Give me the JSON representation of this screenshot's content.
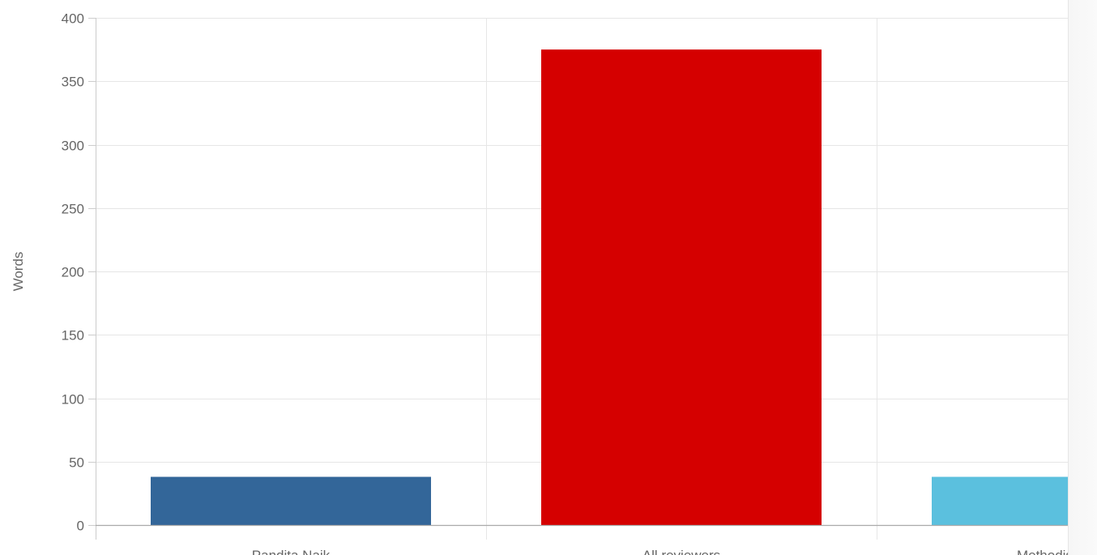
{
  "chart_data": {
    "type": "bar",
    "ylabel": "Words",
    "xlabel": "",
    "ylim": [
      0,
      400
    ],
    "yticks": [
      0,
      50,
      100,
      150,
      200,
      250,
      300,
      350,
      400
    ],
    "categories": [
      "Pandita Naik",
      "All reviewers",
      "Methodist College"
    ],
    "values": [
      38,
      375,
      38
    ],
    "colors": [
      "#336699",
      "#d50000",
      "#5bc0de"
    ],
    "grid": true,
    "legend": "none"
  }
}
